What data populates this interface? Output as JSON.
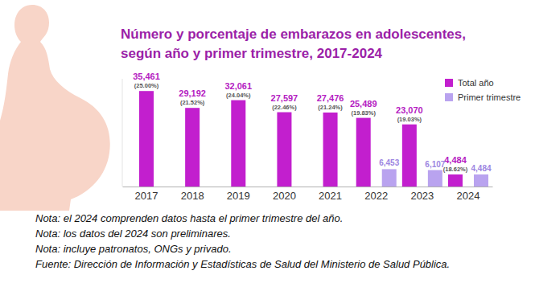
{
  "chart_data": {
    "type": "bar",
    "title": [
      "Número y porcentaje de embarazos en adolescentes,",
      "según año y primer trimestre, 2017-2024"
    ],
    "categories": [
      "2017",
      "2018",
      "2019",
      "2020",
      "2021",
      "2022",
      "2023",
      "2024"
    ],
    "series": [
      {
        "name": "Total año",
        "color": "#c21fce",
        "values": [
          35461,
          29192,
          32061,
          27597,
          27476,
          25489,
          23070,
          4484
        ],
        "value_labels": [
          "35,461",
          "29,192",
          "32,061",
          "27,597",
          "27,476",
          "25,489",
          "23,070",
          "4,484"
        ],
        "percent_labels": [
          "(25.00%)",
          "(21.52%)",
          "(24.04%)",
          "(22.46%)",
          "(21.24%)",
          "(19.83%)",
          "(19.03%)",
          "(18.62%)"
        ]
      },
      {
        "name": "Primer trimestre",
        "color": "#b9a3ef",
        "values": [
          null,
          null,
          null,
          null,
          null,
          6453,
          6107,
          4484
        ],
        "value_labels": [
          null,
          null,
          null,
          null,
          null,
          "6,453",
          "6,107",
          "4,484"
        ]
      }
    ],
    "ylim": [
      0,
      40000
    ],
    "tick_labels": "x",
    "data_labels": true,
    "legend": "top-right",
    "notes": [
      "Nota: el 2024 comprenden datos hasta el primer trimestre del año.",
      "Nota: los datos del 2024 son preliminares.",
      "Nota: incluye patronatos, ONGs y privado.",
      "Fuente: Dirección de Información y Estadísticas de Salud del Ministerio de Salud Pública."
    ]
  }
}
